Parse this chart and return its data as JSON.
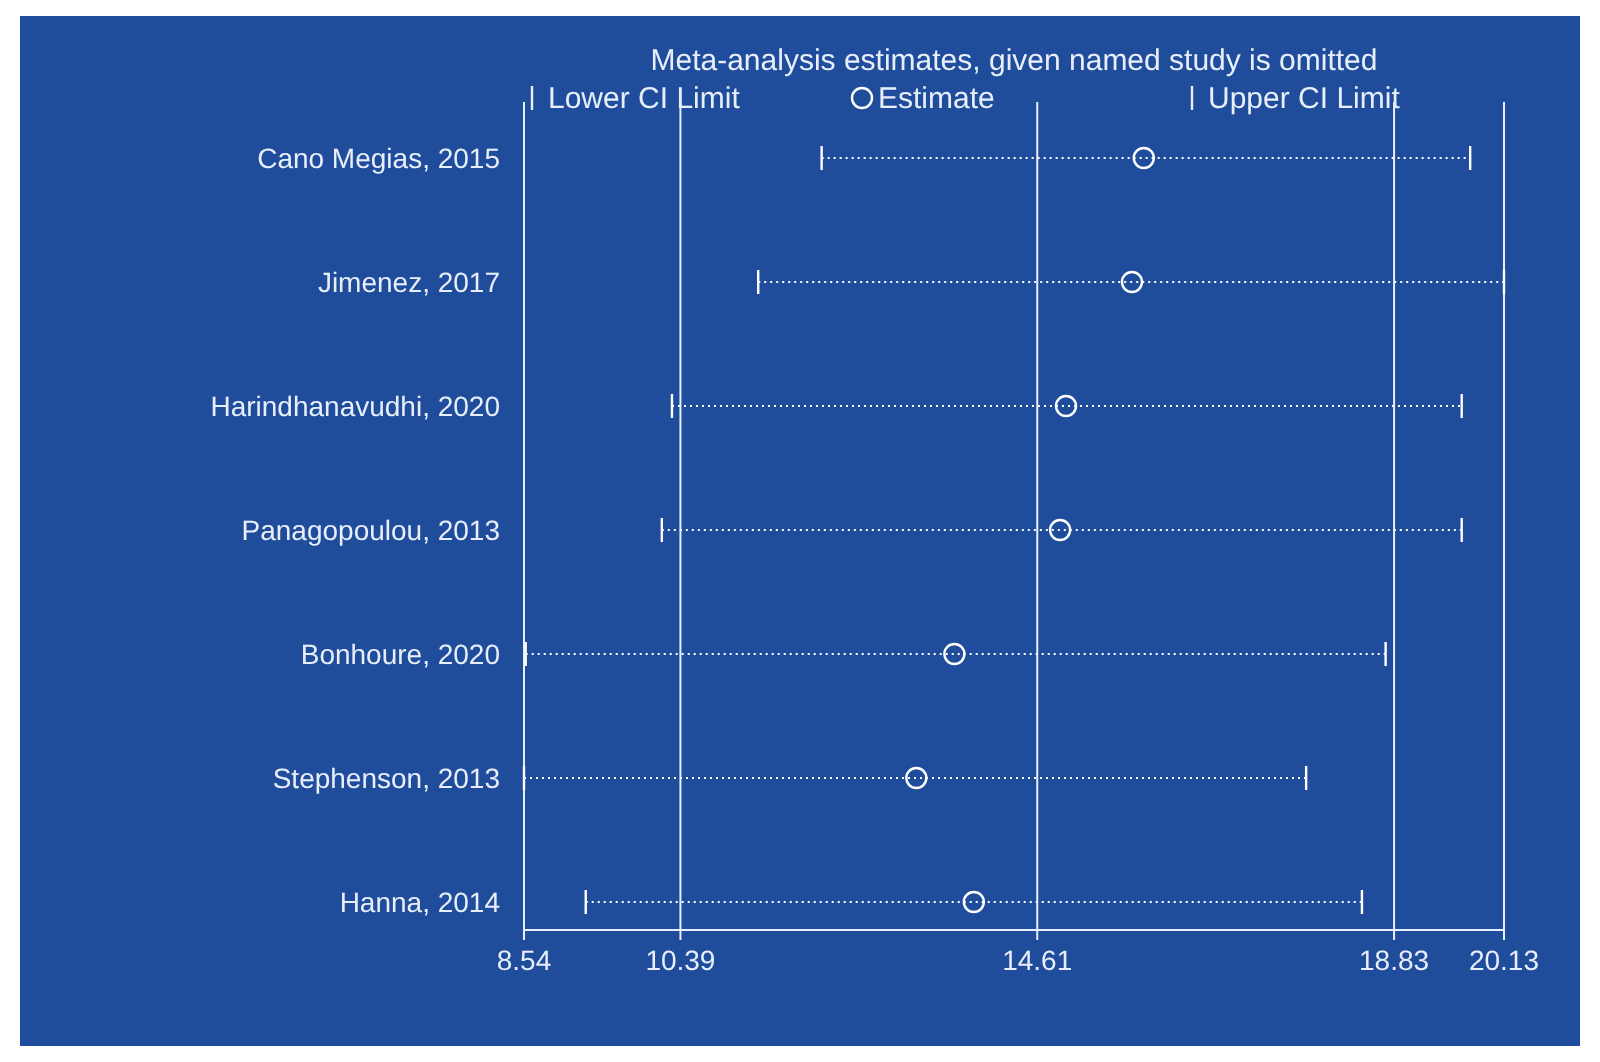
{
  "chart_data": {
    "type": "scatter",
    "orientation": "horizontal",
    "title": "Meta-analysis estimates, given named study is omitted",
    "categories": [
      "Cano Megias, 2015",
      "Jimenez, 2017",
      "Harindhanavudhi, 2020",
      "Panagopoulou, 2013",
      "Bonhoure, 2020",
      "Stephenson, 2013",
      "Hanna, 2014"
    ],
    "series": [
      {
        "name": "Estimate",
        "color": "#ffffff",
        "marker": "circle",
        "values": [
          15.87,
          15.73,
          14.95,
          14.88,
          13.63,
          13.18,
          13.86
        ],
        "errors": [
          [
            12.06,
            19.73
          ],
          [
            11.31,
            20.13
          ],
          [
            10.29,
            19.63
          ],
          [
            10.17,
            19.63
          ],
          [
            8.56,
            18.73
          ],
          [
            8.54,
            17.79
          ],
          [
            9.27,
            18.45
          ]
        ]
      }
    ],
    "annotations": [
      "Lower CI Limit",
      "Upper CI Limit"
    ],
    "line_style": "dotted",
    "xlim": [
      8.54,
      20.13
    ],
    "xticks": [
      8.54,
      10.39,
      14.61,
      18.83,
      20.13
    ],
    "grid": "x",
    "legend": "top"
  }
}
